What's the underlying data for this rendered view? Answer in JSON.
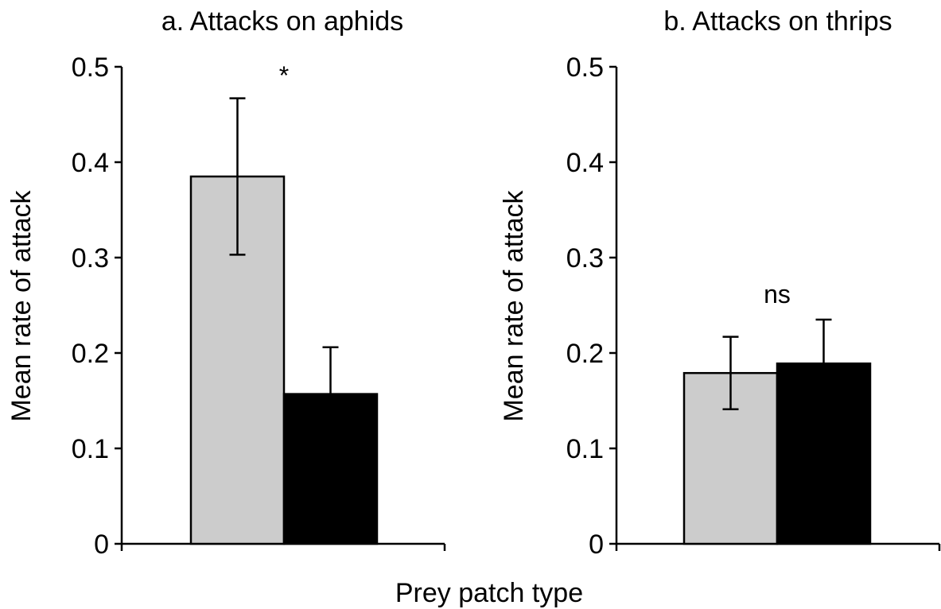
{
  "chart_data": {
    "xlabel": "Prey patch type",
    "colors": [
      "#cccccc",
      "#000000"
    ],
    "panels": [
      {
        "type": "bar",
        "title": "a. Attacks on aphids",
        "ylabel": "Mean rate of attack",
        "ylim": [
          0,
          0.5
        ],
        "yticks": [
          "0",
          "0.1",
          "0.2",
          "0.3",
          "0.4",
          "0.5"
        ],
        "values": [
          0.385,
          0.157
        ],
        "errors": [
          0.082,
          0.049
        ],
        "annotation": "*"
      },
      {
        "type": "bar",
        "title": "b. Attacks on thrips",
        "ylabel": "Mean rate of attack",
        "ylim": [
          0,
          0.5
        ],
        "yticks": [
          "0",
          "0.1",
          "0.2",
          "0.3",
          "0.4",
          "0.5"
        ],
        "values": [
          0.179,
          0.189
        ],
        "errors": [
          0.038,
          0.046
        ],
        "annotation": "ns"
      }
    ]
  }
}
